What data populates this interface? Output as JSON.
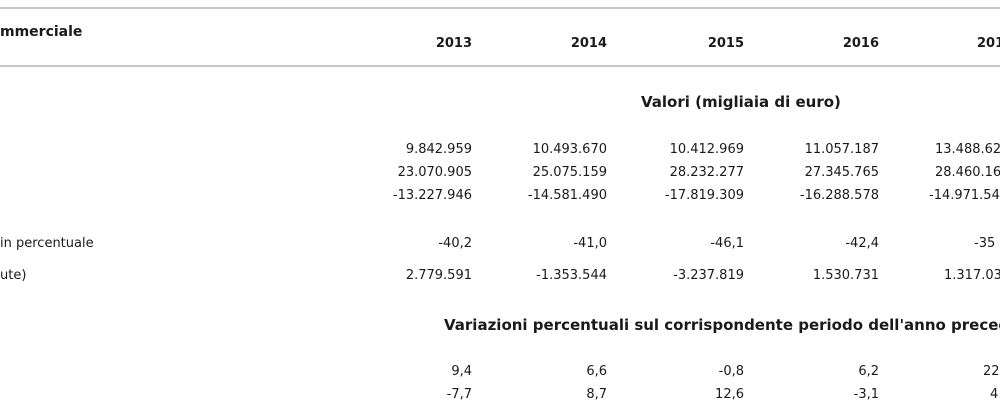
{
  "header": {
    "title_fragment": "mmerciale",
    "years": [
      "2013",
      "2014",
      "2015",
      "2016",
      "201"
    ]
  },
  "sections": [
    {
      "heading": "Valori (migliaia di euro)",
      "rows": [
        {
          "label": "",
          "values": [
            "9.842.959",
            "10.493.670",
            "10.412.969",
            "11.057.187",
            "13.488.62"
          ]
        },
        {
          "label": "",
          "values": [
            "23.070.905",
            "25.075.159",
            "28.232.277",
            "27.345.765",
            "28.460.16"
          ]
        },
        {
          "label": "",
          "values": [
            "-13.227.946",
            "-14.581.490",
            "-17.819.309",
            "-16.288.578",
            "-14.971.54"
          ]
        },
        {
          "label": "in percentuale",
          "values": [
            "-40,2",
            "-41,0",
            "-46,1",
            "-42,4",
            "-35"
          ]
        },
        {
          "label": "ute)",
          "values": [
            "2.779.591",
            "-1.353.544",
            "-3.237.819",
            "1.530.731",
            "1.317.03"
          ]
        }
      ]
    },
    {
      "heading": "Variazioni percentuali sul corrispondente periodo dell'anno preced",
      "rows": [
        {
          "label": "",
          "values": [
            "9,4",
            "6,6",
            "-0,8",
            "6,2",
            "22"
          ]
        },
        {
          "label": "",
          "values": [
            "-7,7",
            "8,7",
            "12,6",
            "-3,1",
            "4"
          ]
        }
      ]
    }
  ]
}
